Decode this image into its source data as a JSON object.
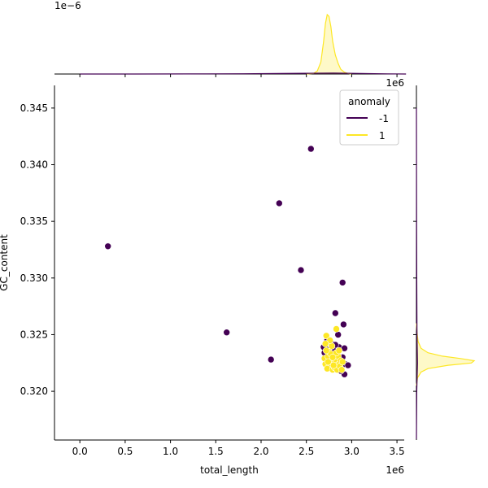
{
  "chart_data": {
    "type": "scatter",
    "xlabel": "total_length",
    "ylabel": "GC_content",
    "x_offset_label": "1e6",
    "top_marginal_offset_label": "1e−6",
    "xlim": [
      -0.28,
      3.58
    ],
    "ylim": [
      0.3157,
      0.347
    ],
    "x_ticks": [
      0.0,
      0.5,
      1.0,
      1.5,
      2.0,
      2.5,
      3.0,
      3.5
    ],
    "x_tick_labels": [
      "0.0",
      "0.5",
      "1.0",
      "1.5",
      "2.0",
      "2.5",
      "3.0",
      "3.5"
    ],
    "y_ticks": [
      0.32,
      0.325,
      0.33,
      0.335,
      0.34,
      0.345
    ],
    "y_tick_labels": [
      "0.320",
      "0.325",
      "0.330",
      "0.335",
      "0.340",
      "0.345"
    ],
    "legend": {
      "title": "anomaly",
      "placement": "top-right",
      "entries": [
        {
          "label": "-1",
          "color": "#440154"
        },
        {
          "label": "1",
          "color": "#fde725"
        }
      ]
    },
    "series": [
      {
        "name": "-1",
        "color": "#440154",
        "points": [
          [
            0.31,
            0.3328
          ],
          [
            1.62,
            0.3252
          ],
          [
            2.11,
            0.3228
          ],
          [
            2.2,
            0.3366
          ],
          [
            2.44,
            0.3307
          ],
          [
            2.55,
            0.3414
          ],
          [
            2.82,
            0.3269
          ],
          [
            2.9,
            0.3296
          ],
          [
            2.91,
            0.3259
          ],
          [
            2.85,
            0.325
          ],
          [
            2.93,
            0.3224
          ],
          [
            2.92,
            0.3215
          ],
          [
            2.88,
            0.3218
          ],
          [
            2.72,
            0.3237
          ],
          [
            2.78,
            0.3242
          ],
          [
            2.7,
            0.3234
          ],
          [
            2.75,
            0.323
          ],
          [
            2.86,
            0.3239
          ],
          [
            2.8,
            0.3236
          ],
          [
            2.73,
            0.3245
          ],
          [
            2.92,
            0.3238
          ],
          [
            2.84,
            0.3233
          ],
          [
            2.69,
            0.3239
          ],
          [
            2.77,
            0.3221
          ],
          [
            2.9,
            0.323
          ],
          [
            2.82,
            0.3241
          ],
          [
            2.74,
            0.3228
          ],
          [
            2.96,
            0.3223
          ]
        ]
      },
      {
        "name": "1",
        "color": "#fde725",
        "points": [
          [
            2.72,
            0.3249
          ],
          [
            2.83,
            0.3255
          ],
          [
            2.7,
            0.3229
          ],
          [
            2.74,
            0.3231
          ],
          [
            2.78,
            0.3226
          ],
          [
            2.8,
            0.3232
          ],
          [
            2.76,
            0.3222
          ],
          [
            2.82,
            0.3228
          ],
          [
            2.86,
            0.3224
          ],
          [
            2.71,
            0.3224
          ],
          [
            2.73,
            0.322
          ],
          [
            2.79,
            0.3219
          ],
          [
            2.85,
            0.3231
          ],
          [
            2.88,
            0.3227
          ],
          [
            2.75,
            0.3235
          ],
          [
            2.81,
            0.3221
          ],
          [
            2.77,
            0.3233
          ],
          [
            2.84,
            0.3219
          ],
          [
            2.72,
            0.3236
          ],
          [
            2.78,
            0.324
          ],
          [
            2.87,
            0.3222
          ],
          [
            2.9,
            0.3226
          ],
          [
            2.74,
            0.3226
          ],
          [
            2.8,
            0.3223
          ],
          [
            2.76,
            0.3245
          ],
          [
            2.83,
            0.3234
          ],
          [
            2.71,
            0.3242
          ],
          [
            2.89,
            0.3219
          ],
          [
            2.79,
            0.323
          ],
          [
            2.86,
            0.3236
          ]
        ]
      }
    ],
    "marginals": {
      "top": {
        "series": [
          {
            "name": "1",
            "color": "#fde725",
            "density": [
              [
                2.5,
                0.0
              ],
              [
                2.58,
                0.01
              ],
              [
                2.62,
                0.05
              ],
              [
                2.66,
                0.2
              ],
              [
                2.69,
                0.55
              ],
              [
                2.71,
                0.85
              ],
              [
                2.73,
                1.0
              ],
              [
                2.75,
                0.97
              ],
              [
                2.77,
                0.8
              ],
              [
                2.79,
                0.55
              ],
              [
                2.82,
                0.32
              ],
              [
                2.85,
                0.18
              ],
              [
                2.88,
                0.08
              ],
              [
                2.92,
                0.03
              ],
              [
                2.96,
                0.01
              ],
              [
                3.0,
                0.0
              ]
            ]
          },
          {
            "name": "-1",
            "color": "#440154",
            "density": [
              [
                0.0,
                0.0
              ],
              [
                0.6,
                0.0
              ],
              [
                1.2,
                0.002
              ],
              [
                1.8,
                0.004
              ],
              [
                2.2,
                0.008
              ],
              [
                2.5,
                0.012
              ],
              [
                2.8,
                0.015
              ],
              [
                3.1,
                0.01
              ],
              [
                3.4,
                0.003
              ],
              [
                3.6,
                0.0
              ]
            ]
          }
        ]
      },
      "right": {
        "series": [
          {
            "name": "1",
            "color": "#fde725",
            "density": [
              [
                0.3205,
                0.0
              ],
              [
                0.3212,
                0.02
              ],
              [
                0.3217,
                0.08
              ],
              [
                0.322,
                0.2
              ],
              [
                0.3223,
                0.55
              ],
              [
                0.3225,
                0.95
              ],
              [
                0.3227,
                1.0
              ],
              [
                0.3229,
                0.75
              ],
              [
                0.3231,
                0.45
              ],
              [
                0.3234,
                0.2
              ],
              [
                0.3238,
                0.08
              ],
              [
                0.3244,
                0.03
              ],
              [
                0.3252,
                0.01
              ],
              [
                0.326,
                0.0
              ]
            ]
          },
          {
            "name": "-1",
            "color": "#440154",
            "density": [
              [
                0.3158,
                0.0
              ],
              [
                0.32,
                0.006
              ],
              [
                0.3225,
                0.018
              ],
              [
                0.325,
                0.01
              ],
              [
                0.33,
                0.005
              ],
              [
                0.335,
                0.003
              ],
              [
                0.34,
                0.002
              ],
              [
                0.345,
                0.0
              ]
            ]
          }
        ]
      }
    }
  }
}
